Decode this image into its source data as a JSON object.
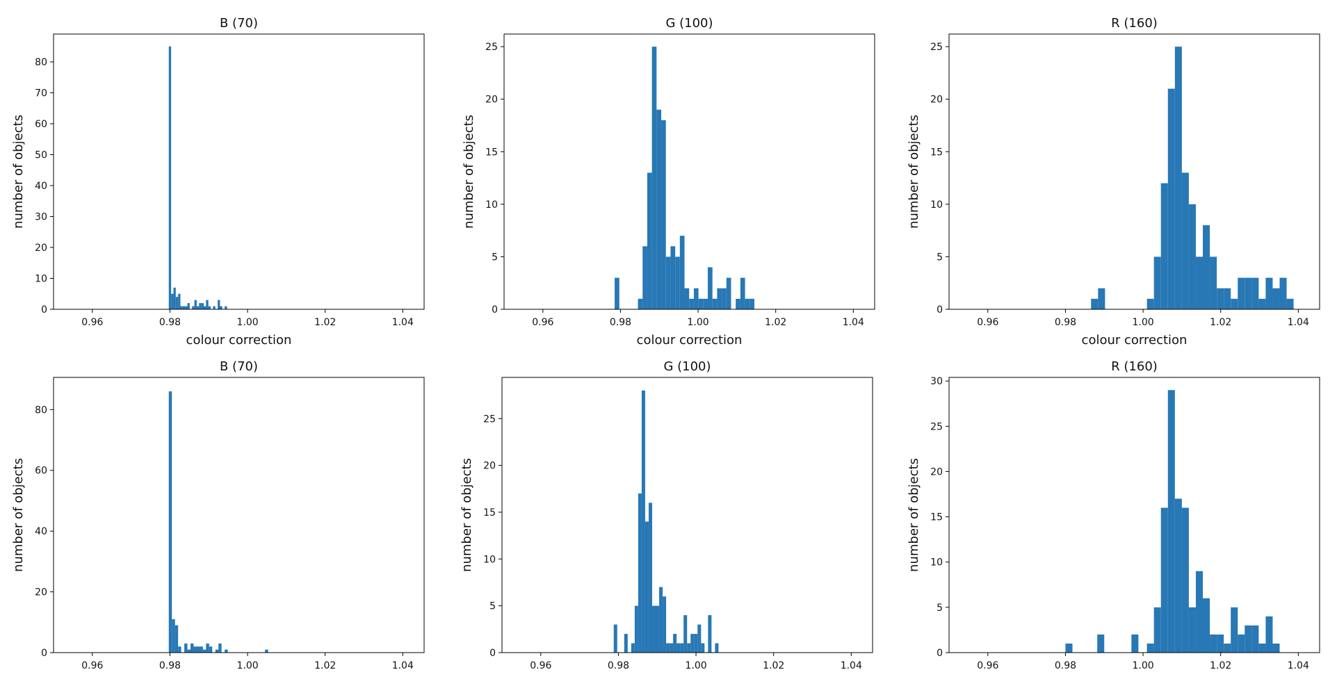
{
  "chart_data": [
    {
      "type": "bar",
      "title": "B (70)",
      "xlabel": "colour correction",
      "ylabel": "number of objects",
      "xlim": [
        0.95,
        1.0455
      ],
      "ylim": [
        0,
        89
      ],
      "xticks": [
        "0.96",
        "0.98",
        "1.00",
        "1.02",
        "1.04"
      ],
      "yticks": [
        "0",
        "10",
        "20",
        "30",
        "40",
        "50",
        "60",
        "70",
        "80"
      ],
      "grid": false,
      "color": "#2878b5",
      "bars": [
        {
          "x0": 0.9797,
          "x1": 0.9803,
          "y": 85
        },
        {
          "x0": 0.9803,
          "x1": 0.9809,
          "y": 5
        },
        {
          "x0": 0.9809,
          "x1": 0.9815,
          "y": 7
        },
        {
          "x0": 0.9815,
          "x1": 0.9821,
          "y": 4
        },
        {
          "x0": 0.9821,
          "x1": 0.9827,
          "y": 5
        },
        {
          "x0": 0.9827,
          "x1": 0.9833,
          "y": 1
        },
        {
          "x0": 0.9833,
          "x1": 0.9839,
          "y": 1
        },
        {
          "x0": 0.9839,
          "x1": 0.9845,
          "y": 1
        },
        {
          "x0": 0.9845,
          "x1": 0.9851,
          "y": 2
        },
        {
          "x0": 0.9851,
          "x1": 0.9857,
          "y": 0
        },
        {
          "x0": 0.9857,
          "x1": 0.9863,
          "y": 1
        },
        {
          "x0": 0.9863,
          "x1": 0.9869,
          "y": 3
        },
        {
          "x0": 0.9869,
          "x1": 0.9875,
          "y": 1
        },
        {
          "x0": 0.9875,
          "x1": 0.9881,
          "y": 2
        },
        {
          "x0": 0.9881,
          "x1": 0.9887,
          "y": 2
        },
        {
          "x0": 0.9887,
          "x1": 0.9893,
          "y": 1
        },
        {
          "x0": 0.9893,
          "x1": 0.9899,
          "y": 3
        },
        {
          "x0": 0.9899,
          "x1": 0.9905,
          "y": 1
        },
        {
          "x0": 0.9905,
          "x1": 0.9911,
          "y": 0
        },
        {
          "x0": 0.9911,
          "x1": 0.9917,
          "y": 1
        },
        {
          "x0": 0.9917,
          "x1": 0.9923,
          "y": 0
        },
        {
          "x0": 0.9923,
          "x1": 0.9929,
          "y": 3
        },
        {
          "x0": 0.9929,
          "x1": 0.9935,
          "y": 1
        },
        {
          "x0": 0.9935,
          "x1": 0.9941,
          "y": 0
        },
        {
          "x0": 0.9941,
          "x1": 0.9947,
          "y": 1
        }
      ]
    },
    {
      "type": "bar",
      "title": "G (100)",
      "xlabel": "colour correction",
      "ylabel": "number of objects",
      "xlim": [
        0.95,
        1.0455
      ],
      "ylim": [
        0,
        26.2
      ],
      "xticks": [
        "0.96",
        "0.98",
        "1.00",
        "1.02",
        "1.04"
      ],
      "yticks": [
        "0",
        "5",
        "10",
        "15",
        "20",
        "25"
      ],
      "grid": false,
      "color": "#2878b5",
      "bars": [
        {
          "x0": 0.9785,
          "x1": 0.9797,
          "y": 3
        },
        {
          "x0": 0.9845,
          "x1": 0.9857,
          "y": 1
        },
        {
          "x0": 0.9857,
          "x1": 0.9869,
          "y": 6
        },
        {
          "x0": 0.9869,
          "x1": 0.9881,
          "y": 13
        },
        {
          "x0": 0.9881,
          "x1": 0.9893,
          "y": 25
        },
        {
          "x0": 0.9893,
          "x1": 0.9905,
          "y": 19
        },
        {
          "x0": 0.9905,
          "x1": 0.9917,
          "y": 18
        },
        {
          "x0": 0.9917,
          "x1": 0.9929,
          "y": 5
        },
        {
          "x0": 0.9929,
          "x1": 0.9941,
          "y": 6
        },
        {
          "x0": 0.9941,
          "x1": 0.9953,
          "y": 5
        },
        {
          "x0": 0.9953,
          "x1": 0.9965,
          "y": 7
        },
        {
          "x0": 0.9965,
          "x1": 0.9977,
          "y": 2
        },
        {
          "x0": 0.9977,
          "x1": 0.9989,
          "y": 1
        },
        {
          "x0": 0.9989,
          "x1": 1.0001,
          "y": 2
        },
        {
          "x0": 1.0001,
          "x1": 1.0013,
          "y": 1
        },
        {
          "x0": 1.0013,
          "x1": 1.0025,
          "y": 1
        },
        {
          "x0": 1.0025,
          "x1": 1.0037,
          "y": 4
        },
        {
          "x0": 1.0037,
          "x1": 1.0049,
          "y": 1
        },
        {
          "x0": 1.0049,
          "x1": 1.0061,
          "y": 2
        },
        {
          "x0": 1.0061,
          "x1": 1.0073,
          "y": 2
        },
        {
          "x0": 1.0073,
          "x1": 1.0085,
          "y": 3
        },
        {
          "x0": 1.0085,
          "x1": 1.0097,
          "y": 0
        },
        {
          "x0": 1.0097,
          "x1": 1.0109,
          "y": 1
        },
        {
          "x0": 1.0109,
          "x1": 1.0121,
          "y": 3
        },
        {
          "x0": 1.0121,
          "x1": 1.0133,
          "y": 1
        },
        {
          "x0": 1.0133,
          "x1": 1.0145,
          "y": 1
        }
      ]
    },
    {
      "type": "bar",
      "title": "R (160)",
      "xlabel": "colour correction",
      "ylabel": "number of objects",
      "xlim": [
        0.95,
        1.0455
      ],
      "ylim": [
        0,
        26.2
      ],
      "xticks": [
        "0.96",
        "0.98",
        "1.00",
        "1.02",
        "1.04"
      ],
      "yticks": [
        "0",
        "5",
        "10",
        "15",
        "20",
        "25"
      ],
      "grid": false,
      "color": "#2878b5",
      "bars": [
        {
          "x0": 0.9866,
          "x1": 0.9884,
          "y": 1
        },
        {
          "x0": 0.9884,
          "x1": 0.9902,
          "y": 2
        },
        {
          "x0": 1.001,
          "x1": 1.0028,
          "y": 1
        },
        {
          "x0": 1.0028,
          "x1": 1.0046,
          "y": 5
        },
        {
          "x0": 1.0046,
          "x1": 1.0064,
          "y": 12
        },
        {
          "x0": 1.0064,
          "x1": 1.0082,
          "y": 21
        },
        {
          "x0": 1.0082,
          "x1": 1.01,
          "y": 25
        },
        {
          "x0": 1.01,
          "x1": 1.0118,
          "y": 13
        },
        {
          "x0": 1.0118,
          "x1": 1.0136,
          "y": 10
        },
        {
          "x0": 1.0136,
          "x1": 1.0154,
          "y": 5
        },
        {
          "x0": 1.0154,
          "x1": 1.0172,
          "y": 8
        },
        {
          "x0": 1.0172,
          "x1": 1.019,
          "y": 5
        },
        {
          "x0": 1.019,
          "x1": 1.0208,
          "y": 2
        },
        {
          "x0": 1.0208,
          "x1": 1.0226,
          "y": 2
        },
        {
          "x0": 1.0226,
          "x1": 1.0244,
          "y": 1
        },
        {
          "x0": 1.0244,
          "x1": 1.0262,
          "y": 3
        },
        {
          "x0": 1.0262,
          "x1": 1.028,
          "y": 3
        },
        {
          "x0": 1.028,
          "x1": 1.0298,
          "y": 3
        },
        {
          "x0": 1.0298,
          "x1": 1.0316,
          "y": 1
        },
        {
          "x0": 1.0316,
          "x1": 1.0334,
          "y": 3
        },
        {
          "x0": 1.0334,
          "x1": 1.0352,
          "y": 2
        },
        {
          "x0": 1.0352,
          "x1": 1.037,
          "y": 3
        },
        {
          "x0": 1.037,
          "x1": 1.0388,
          "y": 1
        }
      ]
    },
    {
      "type": "bar",
      "title": "B (70)",
      "xlabel": "",
      "ylabel": "number of objects",
      "xlim": [
        0.95,
        1.0455
      ],
      "ylim": [
        0,
        90.6
      ],
      "xticks": [
        "0.96",
        "0.98",
        "1.00",
        "1.02",
        "1.04"
      ],
      "yticks": [
        "0",
        "20",
        "40",
        "60",
        "80"
      ],
      "grid": false,
      "color": "#2878b5",
      "bars": [
        {
          "x0": 0.9797,
          "x1": 0.9805,
          "y": 86
        },
        {
          "x0": 0.9805,
          "x1": 0.9813,
          "y": 11
        },
        {
          "x0": 0.9813,
          "x1": 0.9821,
          "y": 9
        },
        {
          "x0": 0.9821,
          "x1": 0.9829,
          "y": 2
        },
        {
          "x0": 0.9829,
          "x1": 0.9837,
          "y": 0
        },
        {
          "x0": 0.9837,
          "x1": 0.9845,
          "y": 3
        },
        {
          "x0": 0.9845,
          "x1": 0.9853,
          "y": 1
        },
        {
          "x0": 0.9853,
          "x1": 0.9861,
          "y": 3
        },
        {
          "x0": 0.9861,
          "x1": 0.9869,
          "y": 2
        },
        {
          "x0": 0.9869,
          "x1": 0.9877,
          "y": 2
        },
        {
          "x0": 0.9877,
          "x1": 0.9885,
          "y": 2
        },
        {
          "x0": 0.9885,
          "x1": 0.9893,
          "y": 1
        },
        {
          "x0": 0.9893,
          "x1": 0.9901,
          "y": 3
        },
        {
          "x0": 0.9901,
          "x1": 0.9909,
          "y": 2
        },
        {
          "x0": 0.9909,
          "x1": 0.9917,
          "y": 0
        },
        {
          "x0": 0.9917,
          "x1": 0.9925,
          "y": 1
        },
        {
          "x0": 0.9925,
          "x1": 0.9933,
          "y": 3
        },
        {
          "x0": 0.9933,
          "x1": 0.9941,
          "y": 0
        },
        {
          "x0": 0.9941,
          "x1": 0.9949,
          "y": 1
        },
        {
          "x0": 1.0045,
          "x1": 1.0053,
          "y": 1
        }
      ]
    },
    {
      "type": "bar",
      "title": "G (100)",
      "xlabel": "",
      "ylabel": "number of objects",
      "xlim": [
        0.95,
        1.0455
      ],
      "ylim": [
        0,
        29.4
      ],
      "xticks": [
        "0.96",
        "0.98",
        "1.00",
        "1.02",
        "1.04"
      ],
      "yticks": [
        "0",
        "5",
        "10",
        "15",
        "20",
        "25"
      ],
      "grid": false,
      "color": "#2878b5",
      "bars": [
        {
          "x0": 0.9788,
          "x1": 0.9797,
          "y": 3
        },
        {
          "x0": 0.9815,
          "x1": 0.9824,
          "y": 2
        },
        {
          "x0": 0.9833,
          "x1": 0.9842,
          "y": 1
        },
        {
          "x0": 0.9842,
          "x1": 0.9851,
          "y": 5
        },
        {
          "x0": 0.9851,
          "x1": 0.986,
          "y": 17
        },
        {
          "x0": 0.986,
          "x1": 0.9869,
          "y": 28
        },
        {
          "x0": 0.9869,
          "x1": 0.9878,
          "y": 14
        },
        {
          "x0": 0.9878,
          "x1": 0.9887,
          "y": 16
        },
        {
          "x0": 0.9887,
          "x1": 0.9896,
          "y": 5
        },
        {
          "x0": 0.9896,
          "x1": 0.9905,
          "y": 5
        },
        {
          "x0": 0.9905,
          "x1": 0.9914,
          "y": 7
        },
        {
          "x0": 0.9914,
          "x1": 0.9923,
          "y": 6
        },
        {
          "x0": 0.9923,
          "x1": 0.9932,
          "y": 1
        },
        {
          "x0": 0.9932,
          "x1": 0.9941,
          "y": 1
        },
        {
          "x0": 0.9941,
          "x1": 0.995,
          "y": 2
        },
        {
          "x0": 0.995,
          "x1": 0.9959,
          "y": 1
        },
        {
          "x0": 0.9959,
          "x1": 0.9968,
          "y": 1
        },
        {
          "x0": 0.9968,
          "x1": 0.9977,
          "y": 4
        },
        {
          "x0": 0.9977,
          "x1": 0.9986,
          "y": 1
        },
        {
          "x0": 0.9986,
          "x1": 0.9995,
          "y": 2
        },
        {
          "x0": 0.9995,
          "x1": 1.0004,
          "y": 2
        },
        {
          "x0": 1.0004,
          "x1": 1.0013,
          "y": 3
        },
        {
          "x0": 1.0013,
          "x1": 1.0022,
          "y": 1
        },
        {
          "x0": 1.0022,
          "x1": 1.0031,
          "y": 0
        },
        {
          "x0": 1.0031,
          "x1": 1.004,
          "y": 4
        },
        {
          "x0": 1.0049,
          "x1": 1.0058,
          "y": 1
        }
      ]
    },
    {
      "type": "bar",
      "title": "R (160)",
      "xlabel": "",
      "ylabel": "number of objects",
      "xlim": [
        0.95,
        1.0455
      ],
      "ylim": [
        0,
        30.4
      ],
      "xticks": [
        "0.96",
        "0.98",
        "1.00",
        "1.02",
        "1.04"
      ],
      "yticks": [
        "0",
        "5",
        "10",
        "15",
        "20",
        "25",
        "30"
      ],
      "grid": false,
      "color": "#2878b5",
      "bars": [
        {
          "x0": 0.98,
          "x1": 0.9818,
          "y": 1
        },
        {
          "x0": 0.9882,
          "x1": 0.99,
          "y": 2
        },
        {
          "x0": 0.997,
          "x1": 0.9988,
          "y": 2
        },
        {
          "x0": 1.001,
          "x1": 1.0028,
          "y": 1
        },
        {
          "x0": 1.0028,
          "x1": 1.0046,
          "y": 5
        },
        {
          "x0": 1.0046,
          "x1": 1.0064,
          "y": 16
        },
        {
          "x0": 1.0064,
          "x1": 1.0082,
          "y": 29
        },
        {
          "x0": 1.0082,
          "x1": 1.01,
          "y": 17
        },
        {
          "x0": 1.01,
          "x1": 1.0118,
          "y": 16
        },
        {
          "x0": 1.0118,
          "x1": 1.0136,
          "y": 5
        },
        {
          "x0": 1.0136,
          "x1": 1.0154,
          "y": 9
        },
        {
          "x0": 1.0154,
          "x1": 1.0172,
          "y": 6
        },
        {
          "x0": 1.0172,
          "x1": 1.019,
          "y": 2
        },
        {
          "x0": 1.019,
          "x1": 1.0208,
          "y": 2
        },
        {
          "x0": 1.0208,
          "x1": 1.0226,
          "y": 1
        },
        {
          "x0": 1.0226,
          "x1": 1.0244,
          "y": 5
        },
        {
          "x0": 1.0244,
          "x1": 1.0262,
          "y": 2
        },
        {
          "x0": 1.0262,
          "x1": 1.028,
          "y": 3
        },
        {
          "x0": 1.028,
          "x1": 1.0298,
          "y": 3
        },
        {
          "x0": 1.0298,
          "x1": 1.0316,
          "y": 1
        },
        {
          "x0": 1.0316,
          "x1": 1.0334,
          "y": 4
        },
        {
          "x0": 1.0334,
          "x1": 1.0352,
          "y": 1
        }
      ]
    }
  ]
}
